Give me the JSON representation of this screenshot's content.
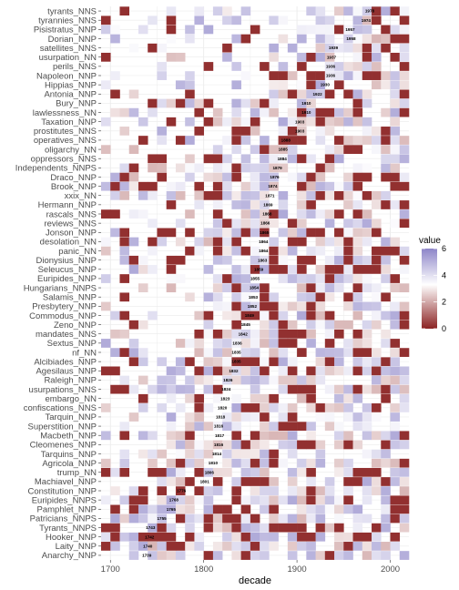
{
  "chart_data": {
    "type": "heatmap",
    "xlabel": "decade",
    "x_ticks": [
      1700,
      1800,
      1900,
      2000
    ],
    "x_range": [
      1690,
      2020
    ],
    "decade_step": 10,
    "grid": true,
    "legend": {
      "title": "value",
      "position": "right",
      "ticks": [
        0,
        2,
        4,
        6
      ],
      "range": [
        0,
        6
      ],
      "colors": {
        "low": "#8b2323",
        "mid": "#ffffff",
        "high": "#8d85c8"
      }
    },
    "rows": [
      {
        "term": "tyrants_NNS",
        "annotation": {
          "decade": 1978,
          "label": "1978"
        }
      },
      {
        "term": "tyrannies_NNS",
        "annotation": {
          "decade": 1974,
          "label": "1974"
        }
      },
      {
        "term": "Pisistratus_NNP",
        "annotation": {
          "decade": 1957,
          "label": "1957"
        }
      },
      {
        "term": "Dorian_NNP",
        "annotation": {
          "decade": 1958,
          "label": "1958"
        }
      },
      {
        "term": "satellites_NNS",
        "annotation": {
          "decade": 1939,
          "label": "1939"
        }
      },
      {
        "term": "usurpation_NN",
        "annotation": {
          "decade": 1937,
          "label": "1937"
        }
      },
      {
        "term": "perils_NNS",
        "annotation": {
          "decade": 1936,
          "label": "1936"
        }
      },
      {
        "term": "Napoleon_NNP",
        "annotation": {
          "decade": 1936,
          "label": "1936"
        }
      },
      {
        "term": "Hippias_NNP",
        "annotation": {
          "decade": 1930,
          "label": "1930"
        }
      },
      {
        "term": "Antonia_NNP",
        "annotation": {
          "decade": 1922,
          "label": "1922"
        }
      },
      {
        "term": "Bury_NNP",
        "annotation": {
          "decade": 1910,
          "label": "1910"
        }
      },
      {
        "term": "lawlessness_NN",
        "annotation": {
          "decade": 1910,
          "label": "1910"
        }
      },
      {
        "term": "Taxation_NNP",
        "annotation": {
          "decade": 1903,
          "label": "1903"
        }
      },
      {
        "term": "prostitutes_NNS",
        "annotation": {
          "decade": 1903,
          "label": "1903"
        }
      },
      {
        "term": "operatives_NNS",
        "annotation": {
          "decade": 1888,
          "label": "1888"
        }
      },
      {
        "term": "oligarchy_NN",
        "annotation": {
          "decade": 1885,
          "label": "1885"
        }
      },
      {
        "term": "oppressors_NNS",
        "annotation": {
          "decade": 1884,
          "label": "1884"
        }
      },
      {
        "term": "Independents_NNPS",
        "annotation": {
          "decade": 1879,
          "label": "1879"
        }
      },
      {
        "term": "Draco_NNP",
        "annotation": {
          "decade": 1876,
          "label": "1876"
        }
      },
      {
        "term": "Brook_NNP",
        "annotation": {
          "decade": 1874,
          "label": "1874"
        }
      },
      {
        "term": "xxix_NN",
        "annotation": {
          "decade": 1871,
          "label": "1871"
        }
      },
      {
        "term": "Hermann_NNP",
        "annotation": {
          "decade": 1869,
          "label": "1869"
        }
      },
      {
        "term": "rascals_NNS",
        "annotation": {
          "decade": 1868,
          "label": "1868"
        }
      },
      {
        "term": "reviews_NNS",
        "annotation": {
          "decade": 1866,
          "label": "1866"
        }
      },
      {
        "term": "Jonson_NNP",
        "annotation": {
          "decade": 1865,
          "label": "1865"
        }
      },
      {
        "term": "desolation_NN",
        "annotation": {
          "decade": 1864,
          "label": "1864"
        }
      },
      {
        "term": "panic_NN",
        "annotation": {
          "decade": 1864,
          "label": "1864"
        }
      },
      {
        "term": "Dionysius_NNP",
        "annotation": {
          "decade": 1863,
          "label": "1863"
        }
      },
      {
        "term": "Seleucus_NNP",
        "annotation": {
          "decade": 1859,
          "label": "1859"
        }
      },
      {
        "term": "Euripides_NNP",
        "annotation": {
          "decade": 1855,
          "label": "1855"
        }
      },
      {
        "term": "Hungarians_NNPS",
        "annotation": {
          "decade": 1854,
          "label": "1854"
        }
      },
      {
        "term": "Salamis_NNP",
        "annotation": {
          "decade": 1853,
          "label": "1853"
        }
      },
      {
        "term": "Presbytery_NNP",
        "annotation": {
          "decade": 1852,
          "label": "1852"
        }
      },
      {
        "term": "Commodus_NNP",
        "annotation": {
          "decade": 1849,
          "label": "1849"
        }
      },
      {
        "term": "Zeno_NNP",
        "annotation": {
          "decade": 1845,
          "label": "1845"
        }
      },
      {
        "term": "mandates_NNS",
        "annotation": {
          "decade": 1842,
          "label": "1842"
        }
      },
      {
        "term": "Sextus_NNP",
        "annotation": {
          "decade": 1836,
          "label": "1836"
        }
      },
      {
        "term": "nf_NN",
        "annotation": {
          "decade": 1835,
          "label": "1835"
        }
      },
      {
        "term": "Alcibiades_NNP",
        "annotation": {
          "decade": 1835,
          "label": "1835"
        }
      },
      {
        "term": "Agesilaus_NNP",
        "annotation": {
          "decade": 1832,
          "label": "1832"
        }
      },
      {
        "term": "Raleigh_NNP",
        "annotation": {
          "decade": 1826,
          "label": "1826"
        }
      },
      {
        "term": "usurpations_NNS",
        "annotation": {
          "decade": 1824,
          "label": "1824"
        }
      },
      {
        "term": "embargo_NN",
        "annotation": {
          "decade": 1823,
          "label": "1823"
        }
      },
      {
        "term": "confiscations_NNS",
        "annotation": {
          "decade": 1820,
          "label": "1820"
        }
      },
      {
        "term": "Tarquin_NNP",
        "annotation": {
          "decade": 1818,
          "label": "1818"
        }
      },
      {
        "term": "Superstition_NNP",
        "annotation": {
          "decade": 1816,
          "label": "1816"
        }
      },
      {
        "term": "Macbeth_NNP",
        "annotation": {
          "decade": 1817,
          "label": "1817"
        }
      },
      {
        "term": "Cleomenes_NNP",
        "annotation": {
          "decade": 1816,
          "label": "1816"
        }
      },
      {
        "term": "Tarquins_NNP",
        "annotation": {
          "decade": 1814,
          "label": "1814"
        }
      },
      {
        "term": "Agricola_NNP",
        "annotation": {
          "decade": 1810,
          "label": "1810"
        }
      },
      {
        "term": "trump_NN",
        "annotation": {
          "decade": 1806,
          "label": "1806"
        }
      },
      {
        "term": "Machiavel_NNP",
        "annotation": {
          "decade": 1801,
          "label": "1801"
        }
      },
      {
        "term": "Constitution_NNP",
        "annotation": {
          "decade": 1776,
          "label": "1776"
        }
      },
      {
        "term": "Euripides_NNPS",
        "annotation": {
          "decade": 1768,
          "label": "1768"
        }
      },
      {
        "term": "Pamphlet_NNP",
        "annotation": {
          "decade": 1765,
          "label": "1765"
        }
      },
      {
        "term": "Patricians_NNPS",
        "annotation": {
          "decade": 1755,
          "label": "1755"
        }
      },
      {
        "term": "Tyrants_NNPS",
        "annotation": {
          "decade": 1743,
          "label": "1743"
        }
      },
      {
        "term": "Hooker_NNP",
        "annotation": {
          "decade": 1742,
          "label": "1742"
        }
      },
      {
        "term": "Laity_NNP",
        "annotation": {
          "decade": 1740,
          "label": "1740"
        }
      },
      {
        "term": "Anarchy_NNP",
        "annotation": {
          "decade": 1739,
          "label": "1739"
        }
      }
    ]
  }
}
